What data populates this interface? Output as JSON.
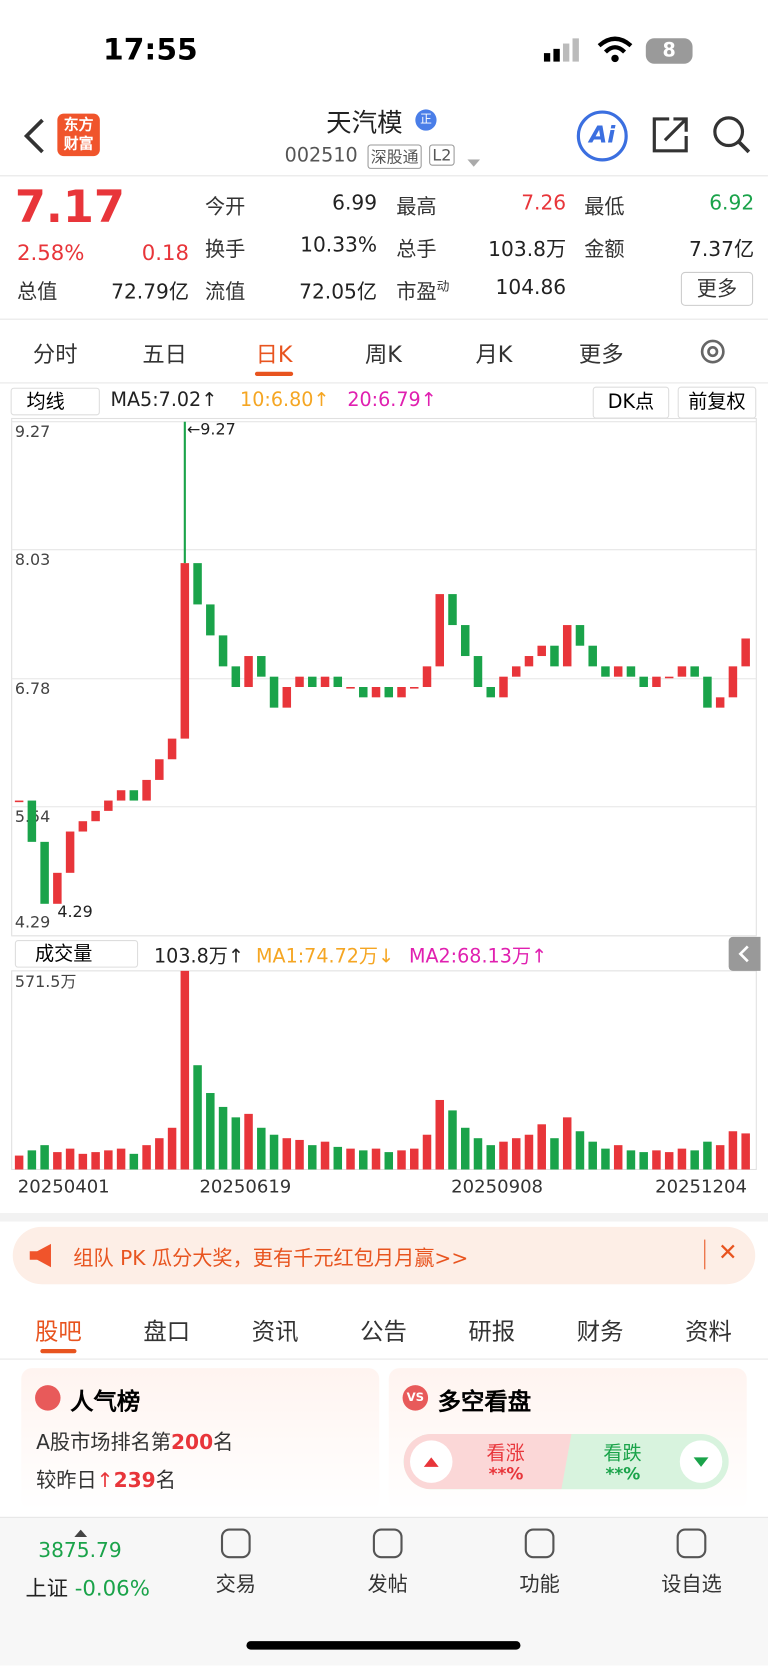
{
  "status": {
    "time": "17:55",
    "battery": "8"
  },
  "header": {
    "logo": "东方财富",
    "name": "天汽模",
    "code": "002510",
    "tag": "深股通",
    "level": "L2",
    "ai": "Ai"
  },
  "quote": {
    "price": "7.17",
    "pct": "2.58%",
    "change": "0.18",
    "fields": [
      {
        "label": "今开",
        "value": "6.99"
      },
      {
        "label": "最高",
        "value": "7.26"
      },
      {
        "label": "最低",
        "value": "6.92"
      },
      {
        "label": "换手",
        "value": "10.33%"
      },
      {
        "label": "总手",
        "value": "103.8万"
      },
      {
        "label": "金额",
        "value": "7.37亿"
      },
      {
        "label": "总值",
        "value": "72.79亿"
      },
      {
        "label": "流值",
        "value": "72.05亿"
      },
      {
        "label": "市盈",
        "sup": "动",
        "value": "104.86"
      }
    ],
    "more": "更多"
  },
  "tabs": [
    "分时",
    "五日",
    "日K",
    "周K",
    "月K",
    "更多"
  ],
  "toolbar": {
    "ma": "均线",
    "ma5": "MA5:7.02↑",
    "ma10": "10:6.80↑",
    "ma20": "20:6.79↑",
    "dk": "DK点",
    "adjust": "前复权"
  },
  "chart_data": {
    "type": "candlestick",
    "ylim": [
      4.29,
      9.27
    ],
    "yticks": [
      9.27,
      8.03,
      6.78,
      5.54,
      4.29
    ],
    "high_label": "←9.27",
    "low_label": "4.29",
    "closes": [
      5.6,
      5.2,
      4.6,
      4.9,
      5.3,
      5.4,
      5.5,
      5.6,
      5.7,
      5.6,
      5.8,
      6.0,
      6.2,
      7.9,
      7.5,
      7.2,
      6.9,
      6.7,
      7.0,
      6.8,
      6.5,
      6.7,
      6.8,
      6.7,
      6.8,
      6.7,
      6.7,
      6.6,
      6.7,
      6.6,
      6.7,
      6.7,
      6.9,
      7.6,
      7.3,
      7.0,
      6.7,
      6.6,
      6.8,
      6.9,
      7.0,
      7.1,
      6.9,
      7.3,
      7.1,
      6.9,
      6.8,
      6.9,
      6.8,
      6.7,
      6.8,
      6.8,
      6.9,
      6.8,
      6.5,
      6.6,
      6.9,
      7.17
    ],
    "x_labels": [
      "20250401",
      "20250619",
      "20250908",
      "20251204"
    ]
  },
  "volume_data": {
    "type": "bar",
    "title": "成交量",
    "current": "103.8万↑",
    "ma1": "MA1:74.72万↓",
    "ma2": "MA2:68.13万↑",
    "ylim": [
      0,
      571.5
    ],
    "top_label": "571.5万",
    "values": [
      40,
      55,
      70,
      50,
      60,
      45,
      50,
      55,
      60,
      45,
      70,
      90,
      120,
      571.5,
      300,
      220,
      180,
      150,
      160,
      120,
      100,
      90,
      85,
      70,
      80,
      65,
      60,
      55,
      60,
      50,
      55,
      60,
      100,
      200,
      170,
      120,
      90,
      70,
      80,
      90,
      100,
      130,
      90,
      150,
      110,
      80,
      60,
      70,
      55,
      50,
      55,
      50,
      60,
      55,
      80,
      70,
      110,
      103.8
    ]
  },
  "banner": {
    "text": "组队 PK 瓜分大奖，更有千元红包月月赢>>"
  },
  "tabs2": [
    "股吧",
    "盘口",
    "资讯",
    "公告",
    "研报",
    "财务",
    "资料"
  ],
  "card1": {
    "title": "人气榜",
    "line1": "A股市场排名第",
    "rank": "200",
    "unit": "名",
    "line2": "较昨日",
    "delta": "239",
    "unit2": "名"
  },
  "card2": {
    "title": "多空看盘",
    "up": "看涨",
    "up_val": "**%",
    "down": "看跌",
    "down_val": "**%"
  },
  "bottom": {
    "index": "3875.79",
    "market": "上证",
    "market_pct": "-0.06%",
    "items": [
      "交易",
      "发帖",
      "功能",
      "设自选"
    ]
  }
}
